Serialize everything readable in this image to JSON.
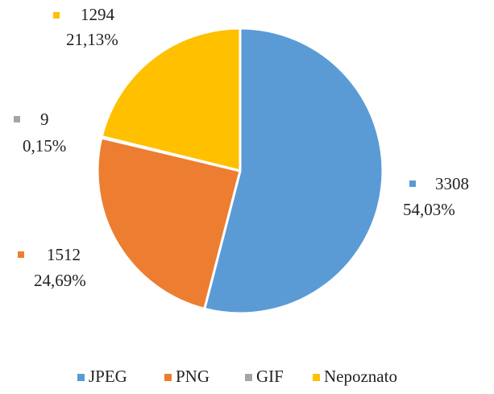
{
  "chart_data": {
    "type": "pie",
    "categories": [
      "JPEG",
      "PNG",
      "GIF",
      "Nepoznato"
    ],
    "values": [
      3308,
      1512,
      9,
      1294
    ],
    "percentages": [
      {
        "value": 54.03,
        "label": "54,03%"
      },
      {
        "value": 24.69,
        "label": "24,69%"
      },
      {
        "value": 0.15,
        "label": "0,15%"
      },
      {
        "value": 21.13,
        "label": "21,13%"
      }
    ],
    "colors": [
      "#5b9bd5",
      "#ed7d31",
      "#a5a5a5",
      "#ffc000"
    ],
    "legend": "bottom"
  }
}
